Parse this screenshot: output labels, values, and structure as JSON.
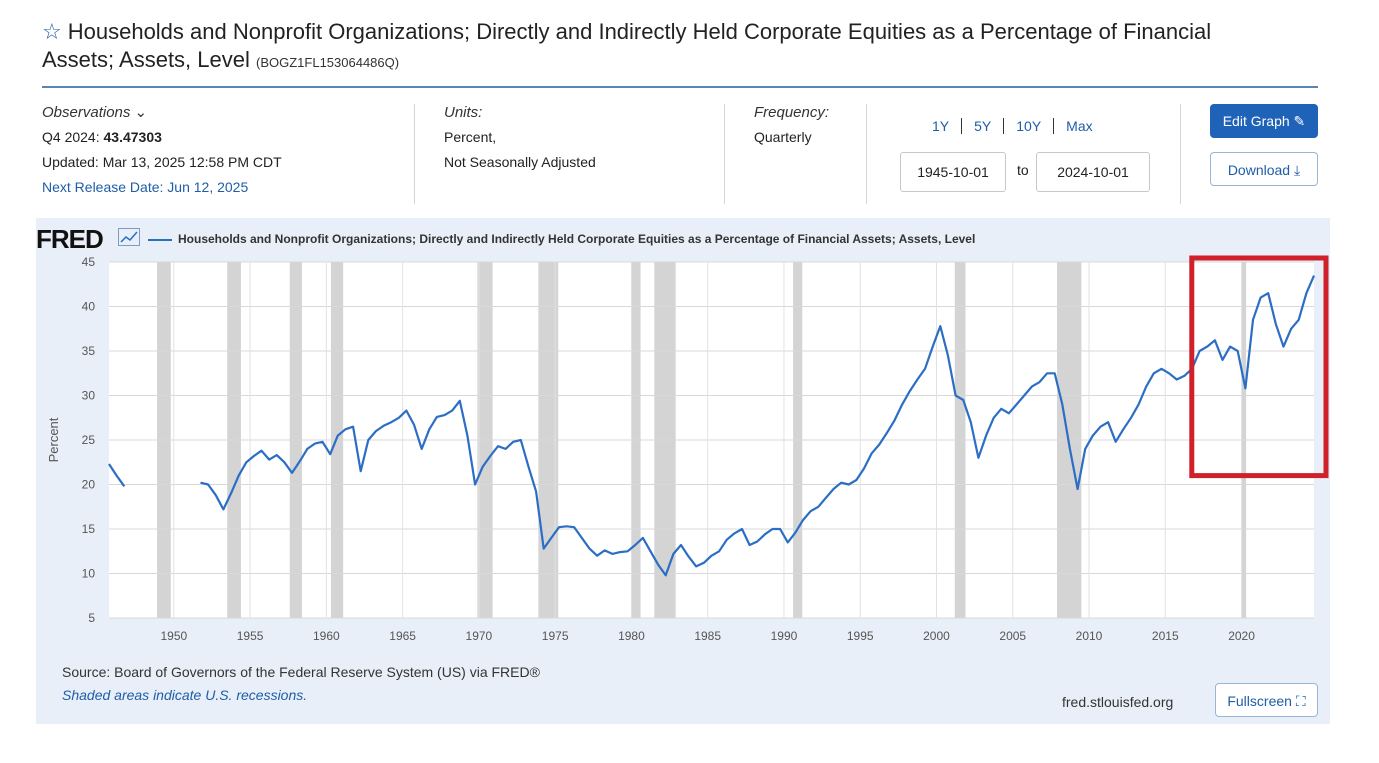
{
  "header": {
    "title": "Households and Nonprofit Organizations; Directly and Indirectly Held Corporate Equities as a Percentage of Financial",
    "title_line2": "Assets; Assets, Level",
    "series_id": "(BOGZ1FL153064486Q)"
  },
  "observations": {
    "label": "Observations",
    "period": "Q4 2024:",
    "value": "43.47303",
    "updated": "Updated: Mar 13, 2025 12:58 PM CDT",
    "next_release": "Next Release Date: Jun 12, 2025"
  },
  "units": {
    "label": "Units:",
    "line1": "Percent,",
    "line2": "Not Seasonally Adjusted"
  },
  "frequency": {
    "label": "Frequency:",
    "value": "Quarterly"
  },
  "range_buttons": [
    "1Y",
    "5Y",
    "10Y",
    "Max"
  ],
  "date_range": {
    "start": "1945-10-01",
    "to": "to",
    "end": "2024-10-01"
  },
  "buttons": {
    "edit": "Edit Graph",
    "download": "Download",
    "fullscreen": "Fullscreen"
  },
  "footer": {
    "source": "Source: Board of Governors of the Federal Reserve System (US) via FRED®",
    "shaded": "Shaded areas indicate U.S. recessions.",
    "url": "fred.stlouisfed.org"
  },
  "logo_text": "FRED",
  "colors": {
    "line": "#2b6ec4",
    "recession": "#d4d4d4",
    "highlight": "#d0202a",
    "accent": "#1f63b8"
  },
  "chart_data": {
    "type": "line",
    "title": "",
    "xlabel": "",
    "ylabel": "Percent",
    "ylim": [
      5,
      45
    ],
    "xlim": [
      1945.75,
      2024.75
    ],
    "y_ticks": [
      5,
      10,
      15,
      20,
      25,
      30,
      35,
      40,
      45
    ],
    "x_ticks": [
      1950,
      1955,
      1960,
      1965,
      1970,
      1975,
      1980,
      1985,
      1990,
      1995,
      2000,
      2005,
      2010,
      2015,
      2020
    ],
    "grid": true,
    "legend": "top-left",
    "series": [
      {
        "name": "Households and Nonprofit Organizations; Directly and Indirectly Held Corporate Equities as a Percentage of Financial Assets; Assets, Level",
        "segments": [
          {
            "x": [
              1945.75,
              1946.25,
              1946.75
            ],
            "y": [
              22.3,
              21.0,
              19.8
            ]
          },
          {
            "x": [
              1951.75,
              1952.25,
              1952.75,
              1953.25,
              1953.75,
              1954.25,
              1954.75,
              1955.25,
              1955.75,
              1956.25,
              1956.75,
              1957.25,
              1957.75,
              1958.25,
              1958.75,
              1959.25,
              1959.75,
              1960.25,
              1960.75,
              1961.25,
              1961.75,
              1962.25,
              1962.75,
              1963.25,
              1963.75,
              1964.25,
              1964.75,
              1965.25,
              1965.75,
              1966.25,
              1966.75,
              1967.25,
              1967.75,
              1968.25,
              1968.75,
              1969.25,
              1969.75,
              1970.25,
              1970.75,
              1971.25,
              1971.75,
              1972.25,
              1972.75,
              1973.25,
              1973.75,
              1974.25,
              1974.75,
              1975.25,
              1975.75,
              1976.25,
              1976.75,
              1977.25,
              1977.75,
              1978.25,
              1978.75,
              1979.25,
              1979.75,
              1980.25,
              1980.75,
              1981.25,
              1981.75,
              1982.25,
              1982.75,
              1983.25,
              1983.75,
              1984.25,
              1984.75,
              1985.25,
              1985.75,
              1986.25,
              1986.75,
              1987.25,
              1987.75,
              1988.25,
              1988.75,
              1989.25,
              1989.75,
              1990.25,
              1990.75,
              1991.25,
              1991.75,
              1992.25,
              1992.75,
              1993.25,
              1993.75,
              1994.25,
              1994.75,
              1995.25,
              1995.75,
              1996.25,
              1996.75,
              1997.25,
              1997.75,
              1998.25,
              1998.75,
              1999.25,
              1999.75,
              2000.25,
              2000.75,
              2001.25,
              2001.75,
              2002.25,
              2002.75,
              2003.25,
              2003.75,
              2004.25,
              2004.75,
              2005.25,
              2005.75,
              2006.25,
              2006.75,
              2007.25,
              2007.75,
              2008.25,
              2008.75,
              2009.25,
              2009.75,
              2010.25,
              2010.75,
              2011.25,
              2011.75,
              2012.25,
              2012.75,
              2013.25,
              2013.75,
              2014.25,
              2014.75,
              2015.25,
              2015.75,
              2016.25,
              2016.75,
              2017.25,
              2017.75,
              2018.25,
              2018.75,
              2019.25,
              2019.75,
              2020.25,
              2020.75,
              2021.25,
              2021.75,
              2022.25,
              2022.75,
              2023.25,
              2023.75,
              2024.25,
              2024.75
            ],
            "y": [
              20.2,
              20.0,
              18.8,
              17.2,
              19.0,
              21.0,
              22.5,
              23.2,
              23.8,
              22.8,
              23.3,
              22.5,
              21.3,
              22.6,
              24.0,
              24.6,
              24.8,
              23.4,
              25.5,
              26.2,
              26.5,
              21.5,
              25.0,
              26.0,
              26.6,
              27.0,
              27.5,
              28.3,
              26.7,
              24.0,
              26.2,
              27.6,
              27.8,
              28.3,
              29.4,
              25.5,
              20.0,
              22.0,
              23.2,
              24.3,
              24.0,
              24.8,
              25.0,
              22.0,
              19.2,
              12.8,
              14.0,
              15.2,
              15.3,
              15.2,
              14.0,
              12.8,
              12.0,
              12.6,
              12.2,
              12.4,
              12.5,
              13.2,
              14.0,
              12.5,
              11.0,
              9.8,
              12.2,
              13.2,
              11.9,
              10.8,
              11.2,
              12.0,
              12.5,
              13.8,
              14.5,
              15.0,
              13.2,
              13.6,
              14.4,
              15.0,
              15.0,
              13.5,
              14.6,
              16.0,
              17.0,
              17.5,
              18.5,
              19.5,
              20.2,
              20.0,
              20.5,
              21.8,
              23.5,
              24.5,
              25.8,
              27.2,
              29.0,
              30.5,
              31.8,
              33.0,
              35.5,
              37.8,
              34.5,
              30.0,
              29.5,
              27.0,
              23.0,
              25.5,
              27.5,
              28.5,
              28.0,
              29.0,
              30.0,
              31.0,
              31.5,
              32.5,
              32.5,
              29.0,
              24.0,
              19.5,
              24.0,
              25.5,
              26.5,
              27.0,
              24.8,
              26.2,
              27.5,
              29.0,
              31.0,
              32.5,
              33.0,
              32.5,
              31.8,
              32.2,
              33.0,
              35.0,
              35.5,
              36.2,
              34.0,
              35.5,
              35.0,
              30.8,
              38.5,
              41.0,
              41.5,
              38.0,
              35.5,
              37.5,
              38.5,
              41.5,
              43.47
            ]
          }
        ]
      }
    ],
    "recessions": [
      [
        1948.9,
        1949.8
      ],
      [
        1953.5,
        1954.4
      ],
      [
        1957.6,
        1958.4
      ],
      [
        1960.3,
        1961.1
      ],
      [
        1969.9,
        1970.9
      ],
      [
        1973.9,
        1975.2
      ],
      [
        1980.0,
        1980.6
      ],
      [
        1981.5,
        1982.9
      ],
      [
        1990.6,
        1991.2
      ],
      [
        2001.2,
        2001.9
      ],
      [
        2007.9,
        2009.5
      ],
      [
        2020.0,
        2020.3
      ]
    ],
    "highlight_box": {
      "x": [
        2017.0,
        2024.75
      ],
      "y": [
        21.0,
        45.0
      ]
    }
  }
}
